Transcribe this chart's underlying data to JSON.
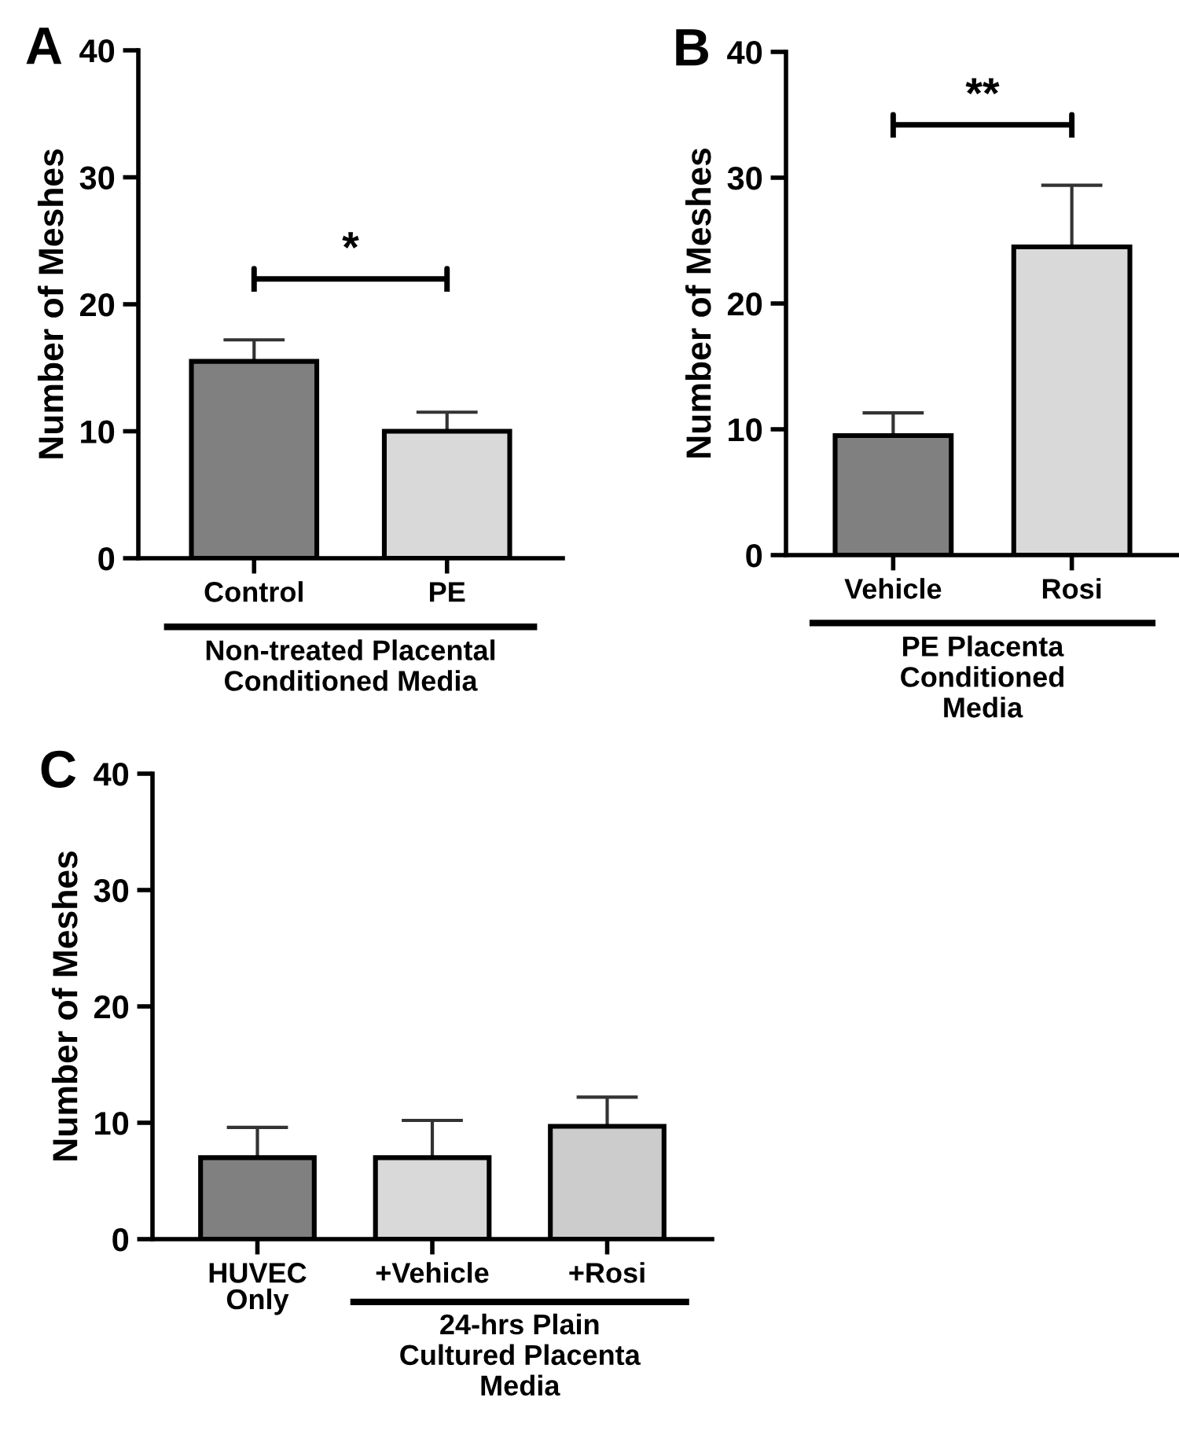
{
  "chart_data": [
    {
      "type": "bar",
      "title": "A",
      "ylabel": "Number of Meshes",
      "xlabel": "Non-treated Placental\nConditioned Media",
      "categories": [
        "Control",
        "PE"
      ],
      "values": [
        15.5,
        10
      ],
      "errors": [
        [
          15.5,
          17.2
        ],
        [
          10,
          11.5
        ]
      ],
      "colors": [
        "#808080",
        "#d9d9d9"
      ],
      "ylim": [
        0,
        40
      ],
      "yticks": [
        0,
        10,
        20,
        30,
        40
      ],
      "annotations": [
        "*"
      ]
    },
    {
      "type": "bar",
      "title": "B",
      "ylabel": "Number of Meshes",
      "xlabel": "PE Placenta\nConditioned\nMedia",
      "categories": [
        "Vehicle",
        "Rosi"
      ],
      "values": [
        9.5,
        24.5
      ],
      "errors": [
        [
          9.5,
          11.3
        ],
        [
          24.5,
          29.4
        ]
      ],
      "colors": [
        "#808080",
        "#d9d9d9"
      ],
      "ylim": [
        0,
        40
      ],
      "yticks": [
        0,
        10,
        20,
        30,
        40
      ],
      "annotations": [
        "**"
      ]
    },
    {
      "type": "bar",
      "title": "C",
      "ylabel": "Number of Meshes",
      "xlabel": "24-hrs Plain\nCultured Placenta\nMedia",
      "categories": [
        "HUVEC\nOnly",
        "+Vehicle",
        "+Rosi"
      ],
      "values": [
        7,
        7,
        9.7
      ],
      "errors": [
        [
          7,
          9.6
        ],
        [
          7,
          10.2
        ],
        [
          9.7,
          12.2
        ]
      ],
      "colors": [
        "#808080",
        "#d9d9d9",
        "#cccccc"
      ],
      "ylim": [
        0,
        40
      ],
      "yticks": [
        0,
        10,
        20,
        30,
        40
      ]
    }
  ]
}
